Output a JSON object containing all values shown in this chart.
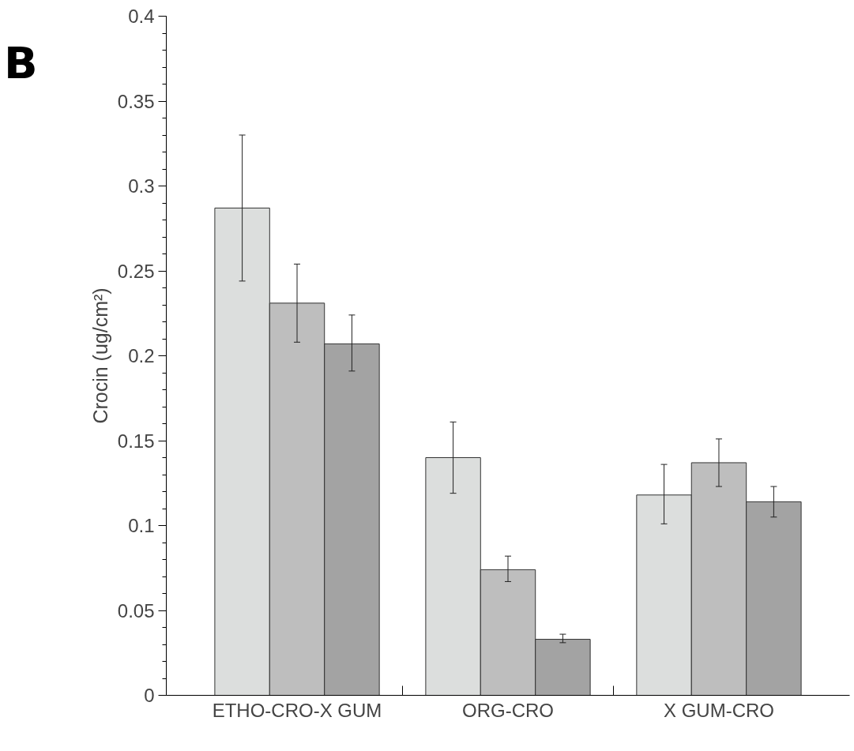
{
  "chart_data": {
    "type": "bar",
    "ylabel": "Crocin (ug/cm²)",
    "annotations": [
      "B"
    ],
    "categories": [
      "ETHO-CRO-X GUM",
      "ORG-CRO",
      "X GUM-CRO"
    ],
    "series": [
      {
        "color": "#dcdedd",
        "values": [
          0.287,
          0.14,
          0.118
        ],
        "errors": [
          [
            0.244,
            0.33
          ],
          [
            0.119,
            0.161
          ],
          [
            0.101,
            0.136
          ]
        ]
      },
      {
        "color": "#bebebe",
        "values": [
          0.231,
          0.074,
          0.137
        ],
        "errors": [
          [
            0.208,
            0.254
          ],
          [
            0.067,
            0.082
          ],
          [
            0.123,
            0.151
          ]
        ]
      },
      {
        "color": "#a3a3a3",
        "values": [
          0.207,
          0.033,
          0.114
        ],
        "errors": [
          [
            0.191,
            0.224
          ],
          [
            0.031,
            0.036
          ],
          [
            0.105,
            0.123
          ]
        ]
      }
    ],
    "ylim": [
      0,
      0.4
    ],
    "yticks": [
      0,
      0.05,
      0.1,
      0.15,
      0.2,
      0.25,
      0.3,
      0.35,
      0.4
    ],
    "grid": false
  }
}
